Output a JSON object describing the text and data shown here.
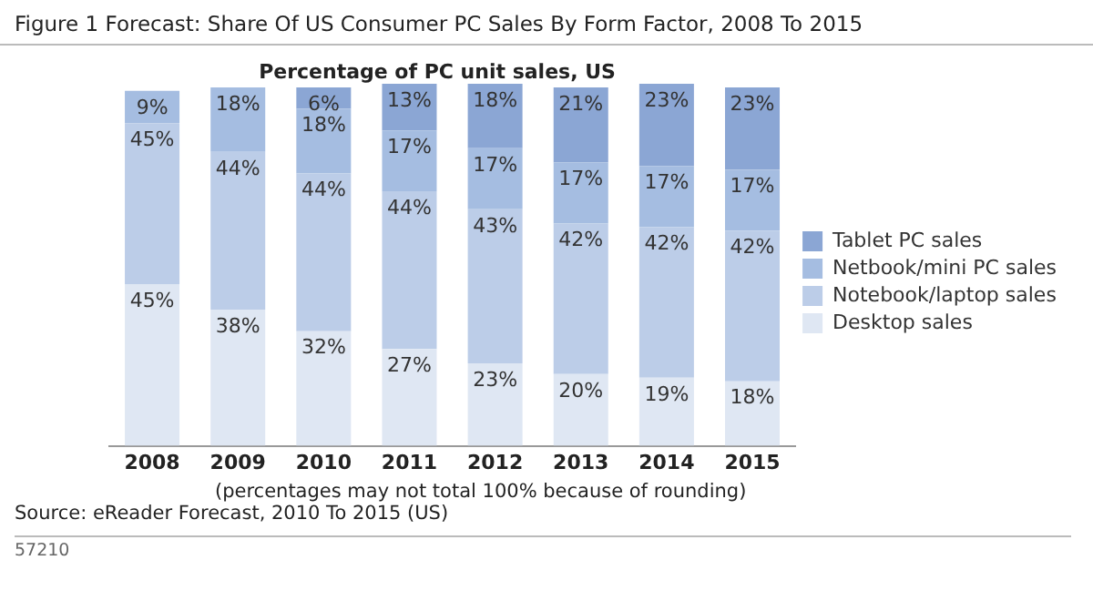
{
  "chart_data": {
    "type": "bar",
    "title": "Figure 1 Forecast: Share Of US Consumer PC Sales By Form Factor, 2008 To 2015",
    "subtitle": "Percentage of PC unit sales, US",
    "categories": [
      "2008",
      "2009",
      "2010",
      "2011",
      "2012",
      "2013",
      "2014",
      "2015"
    ],
    "stacked": true,
    "legend": "right",
    "grid": false,
    "series": [
      {
        "name": "Desktop sales",
        "color": "#dfe7f3",
        "values": [
          45,
          38,
          32,
          27,
          23,
          20,
          19,
          18
        ],
        "value_labels": [
          "45%",
          "38%",
          "32%",
          "27%",
          "23%",
          "20%",
          "19%",
          "18%"
        ]
      },
      {
        "name": "Notebook/laptop sales",
        "color": "#bccde8",
        "values": [
          45,
          44,
          44,
          44,
          43,
          42,
          42,
          42
        ],
        "value_labels": [
          "45%",
          "44%",
          "44%",
          "44%",
          "43%",
          "42%",
          "42%",
          "42%"
        ]
      },
      {
        "name": "Netbook/mini PC sales",
        "color": "#a5bde1",
        "values": [
          9,
          18,
          18,
          17,
          17,
          17,
          17,
          17
        ],
        "value_labels": [
          "9%",
          "18%",
          "18%",
          "17%",
          "17%",
          "17%",
          "17%",
          "17%"
        ]
      },
      {
        "name": "Tablet PC sales",
        "color": "#8ba6d4",
        "values": [
          null,
          null,
          6,
          13,
          18,
          21,
          23,
          23
        ],
        "value_labels": [
          null,
          null,
          "6%",
          "13%",
          "18%",
          "21%",
          "23%",
          "23%"
        ]
      }
    ],
    "annotations": [
      "(percentages may not total 100% because of rounding)",
      "Source: eReader Forecast, 2010 To 2015 (US)",
      "57210"
    ]
  }
}
